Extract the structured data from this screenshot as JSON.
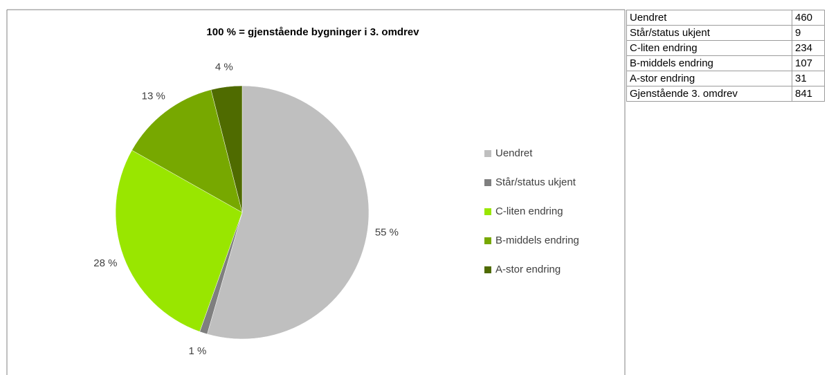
{
  "chart_data": {
    "type": "pie",
    "title": "100 % = gjenstående bygninger i 3. omdrev",
    "categories": [
      "Uendret",
      "Står/status ukjent",
      "C-liten endring",
      "B-middels endring",
      "A-stor endring"
    ],
    "values": [
      55,
      1,
      28,
      13,
      4
    ],
    "value_labels": [
      "55 %",
      "1 %",
      "28 %",
      "13 %",
      "4 %"
    ],
    "colors": [
      "#bfbfbf",
      "#7f7f7f",
      "#99e600",
      "#77a800",
      "#4f6b00"
    ],
    "legend": "right"
  },
  "table": {
    "rows": [
      [
        "Uendret",
        460
      ],
      [
        "Står/status ukjent",
        9
      ],
      [
        "C-liten endring",
        234
      ],
      [
        "B-middels endring",
        107
      ],
      [
        "A-stor endring",
        31
      ],
      [
        "Gjenstående 3. omdrev",
        841
      ]
    ]
  }
}
